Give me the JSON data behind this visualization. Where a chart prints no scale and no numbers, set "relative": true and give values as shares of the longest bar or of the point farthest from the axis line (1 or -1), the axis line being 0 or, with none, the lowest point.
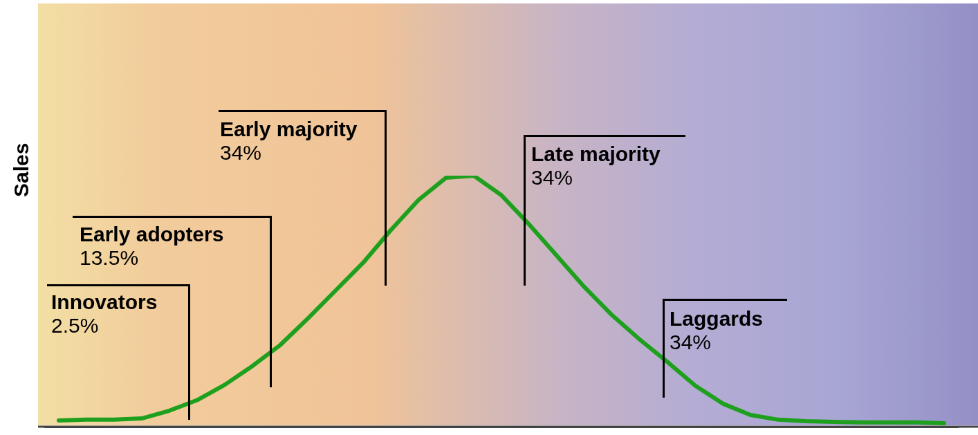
{
  "chart_data": {
    "type": "line",
    "relative": true,
    "ylabel": "Sales",
    "categories": [
      null,
      null,
      null,
      null,
      null,
      null,
      null,
      null,
      null,
      null,
      null,
      null,
      null,
      null,
      null,
      null,
      null,
      null,
      null,
      null,
      null,
      null,
      null,
      null,
      null,
      null,
      null,
      null,
      null,
      null,
      null,
      null,
      null
    ],
    "series": [
      {
        "color": "#1ea01e",
        "values": [
          0.025,
          0.028,
          0.028,
          0.033,
          0.064,
          0.106,
          0.167,
          0.242,
          0.325,
          0.431,
          0.542,
          0.653,
          0.783,
          0.903,
          0.992,
          1,
          0.922,
          0.806,
          0.681,
          0.556,
          0.444,
          0.347,
          0.258,
          0.164,
          0.092,
          0.047,
          0.028,
          0.022,
          0.019,
          0.017,
          0.017,
          0.017,
          0.014
        ]
      }
    ],
    "annotations": [
      "Innovators 2.5%",
      "Early adopters 13.5%",
      "Early majority 34%",
      "Late majority 34%",
      "Laggards 34%"
    ]
  }
}
